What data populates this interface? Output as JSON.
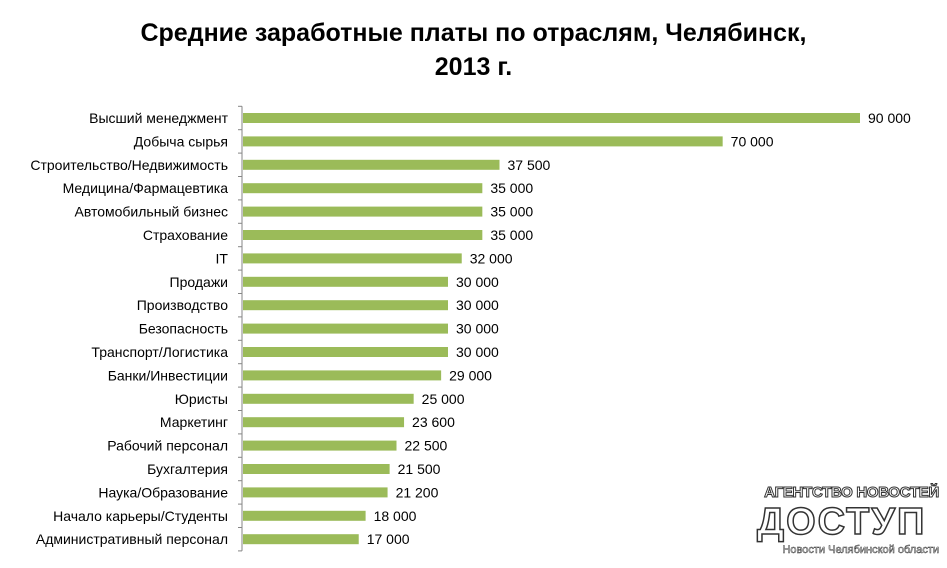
{
  "chart_data": {
    "type": "bar",
    "orientation": "horizontal",
    "title_line1": "Средние заработные платы по отраслям, Челябинск,",
    "title_line2": "2013 г.",
    "categories": [
      "Высший менеджмент",
      "Добыча сырья",
      "Строительство/Недвижимость",
      "Медицина/Фармацевтика",
      "Автомобильный бизнес",
      "Страхование",
      "IT",
      "Продажи",
      "Производство",
      "Безопасность",
      "Транспорт/Логистика",
      "Банки/Инвестиции",
      "Юристы",
      "Маркетинг",
      "Рабочий персонал",
      "Бухгалтерия",
      "Наука/Образование",
      "Начало карьеры/Студенты",
      "Административный персонал"
    ],
    "values": [
      90000,
      70000,
      37500,
      35000,
      35000,
      35000,
      32000,
      30000,
      30000,
      30000,
      30000,
      29000,
      25000,
      23600,
      22500,
      21500,
      21200,
      18000,
      17000
    ],
    "value_labels": [
      "90 000",
      "70 000",
      "37 500",
      "35 000",
      "35 000",
      "35 000",
      "32 000",
      "30 000",
      "30 000",
      "30 000",
      "30 000",
      "29 000",
      "25 000",
      "23 600",
      "22 500",
      "21 500",
      "21 200",
      "18 000",
      "17 000"
    ],
    "xlim": [
      0,
      90000
    ],
    "grid": false,
    "legend": "none",
    "bar_color": "#9bbb59",
    "axis_color": "#868686"
  },
  "watermark": {
    "top_text": "АГЕНТСТВО НОВОСТЕЙ",
    "logo_text": "ДОСТУП",
    "bottom_text": "Новости Челябинской области"
  }
}
